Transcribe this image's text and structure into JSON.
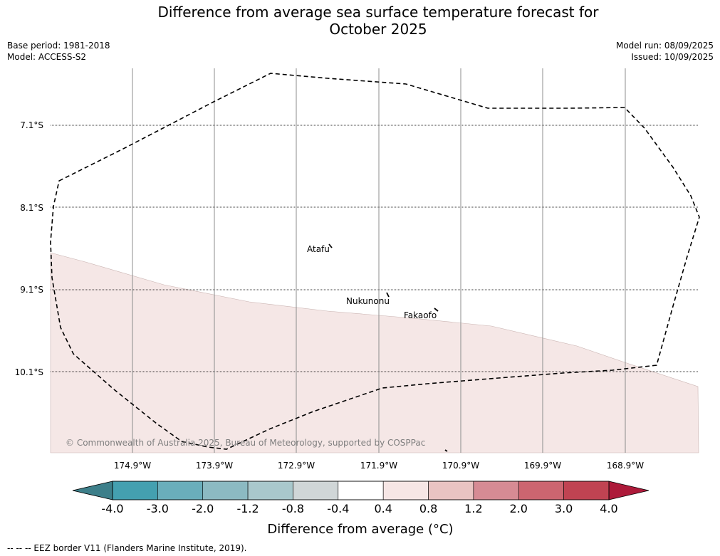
{
  "title_line1": "Difference from average sea surface temperature forecast for",
  "title_line2": "October 2025",
  "base_period": "Base period: 1981-2018",
  "model": "Model: ACCESS-S2",
  "model_run": "Model run: 08/09/2025",
  "issued": "Issued: 10/09/2025",
  "lat_labels": [
    "7.1°S",
    "8.1°S",
    "9.1°S",
    "10.1°S"
  ],
  "lon_labels": [
    "174.9°W",
    "173.9°W",
    "172.9°W",
    "171.9°W",
    "170.9°W",
    "169.9°W",
    "168.9°W"
  ],
  "places": [
    "Atafu",
    "Nukunonu",
    "Fakaofo"
  ],
  "copyright": "© Commonwealth of Australia 2025, Bureau of Meteorology, supported by COSPPac",
  "colorbar": {
    "tick_labels": [
      "-4.0",
      "-3.0",
      "-2.0",
      "-1.2",
      "-0.8",
      "-0.4",
      "0.4",
      "0.8",
      "1.2",
      "2.0",
      "3.0",
      "4.0"
    ],
    "colors": [
      "#44a0b0",
      "#6aaebb",
      "#8cbac2",
      "#a9c8cc",
      "#d0d6d7",
      "#ffffff",
      "#f6e6e5",
      "#e9c4c2",
      "#d68b94",
      "#cc6570",
      "#c04352"
    ],
    "low_extend_color": "#3d7f8a",
    "high_extend_color": "#ad1a3a",
    "label": "Difference from average (°C)"
  },
  "anomaly_fill_color": "#f5e7e6",
  "footer": "--  --  -- EEZ border V11 (Flanders Marine Institute, 2019)."
}
